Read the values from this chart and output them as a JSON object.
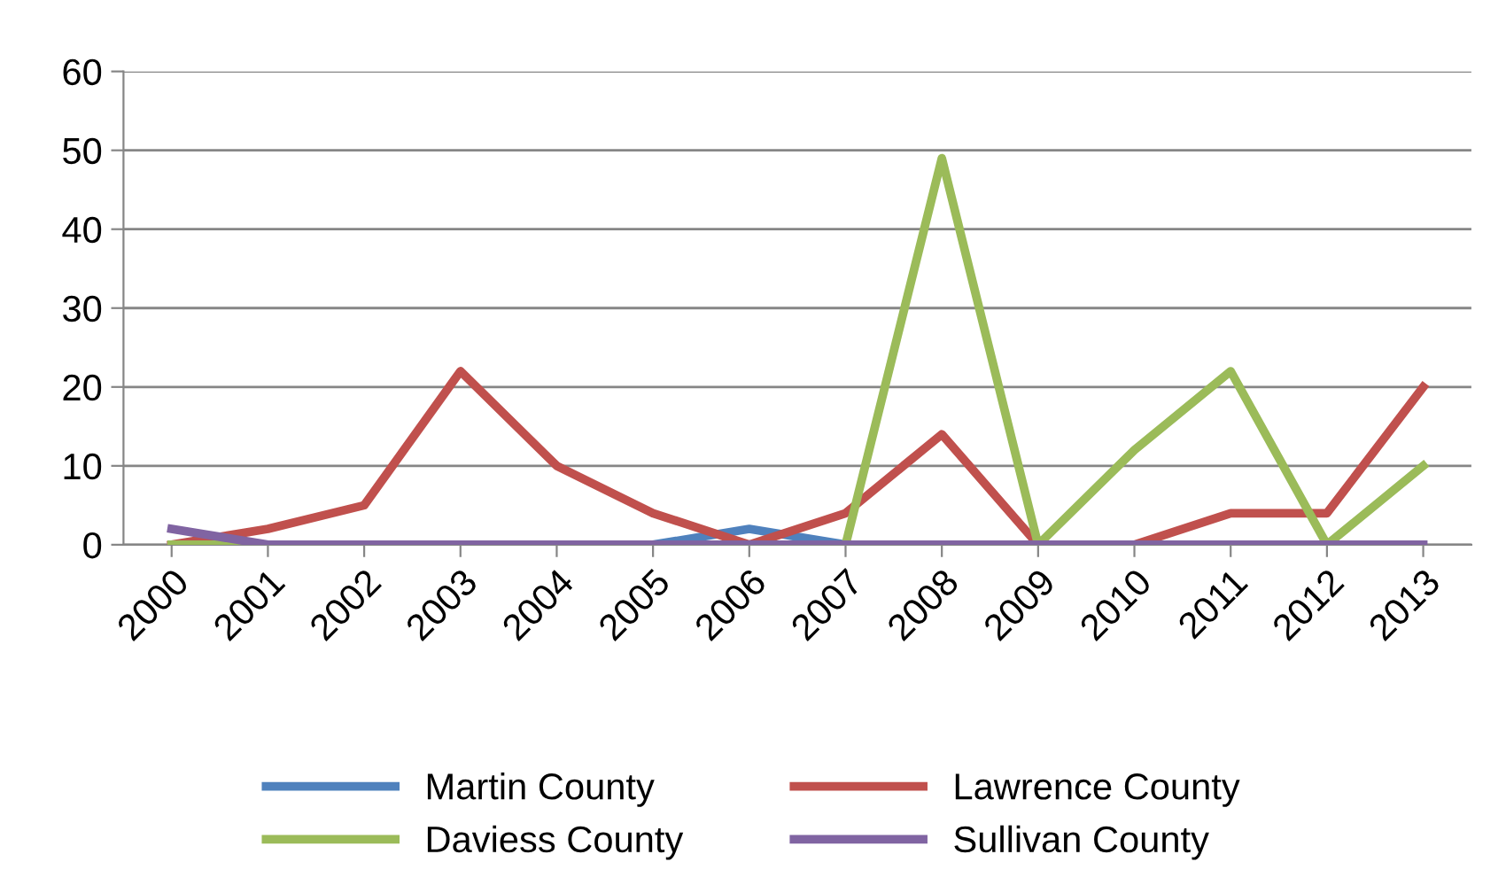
{
  "chart_data": {
    "type": "line",
    "categories": [
      "2000",
      "2001",
      "2002",
      "2003",
      "2004",
      "2005",
      "2006",
      "2007",
      "2008",
      "2009",
      "2010",
      "2011",
      "2012",
      "2013"
    ],
    "series": [
      {
        "name": "Martin County",
        "color": "#4f81bd",
        "values": [
          null,
          null,
          null,
          null,
          null,
          0,
          2,
          0,
          null,
          null,
          null,
          null,
          null,
          null
        ]
      },
      {
        "name": "Lawrence County",
        "color": "#c0504d",
        "values": [
          0,
          2,
          5,
          22,
          10,
          4,
          0,
          4,
          14,
          0,
          0,
          4,
          4,
          20
        ]
      },
      {
        "name": "Daviess County",
        "color": "#9bbb59",
        "values": [
          0,
          0,
          0,
          0,
          0,
          0,
          0,
          0,
          49,
          0,
          12,
          22,
          0,
          10
        ]
      },
      {
        "name": "Sullivan County",
        "color": "#8064a2",
        "values": [
          2,
          0,
          0,
          0,
          0,
          0,
          0,
          0,
          0,
          0,
          0,
          0,
          0,
          0
        ]
      }
    ],
    "ylim": [
      0,
      60
    ],
    "yticks": [
      0,
      10,
      20,
      30,
      40,
      50,
      60
    ],
    "grid": "y",
    "legend": "bottom",
    "marker": "none",
    "line_style": "solid"
  }
}
